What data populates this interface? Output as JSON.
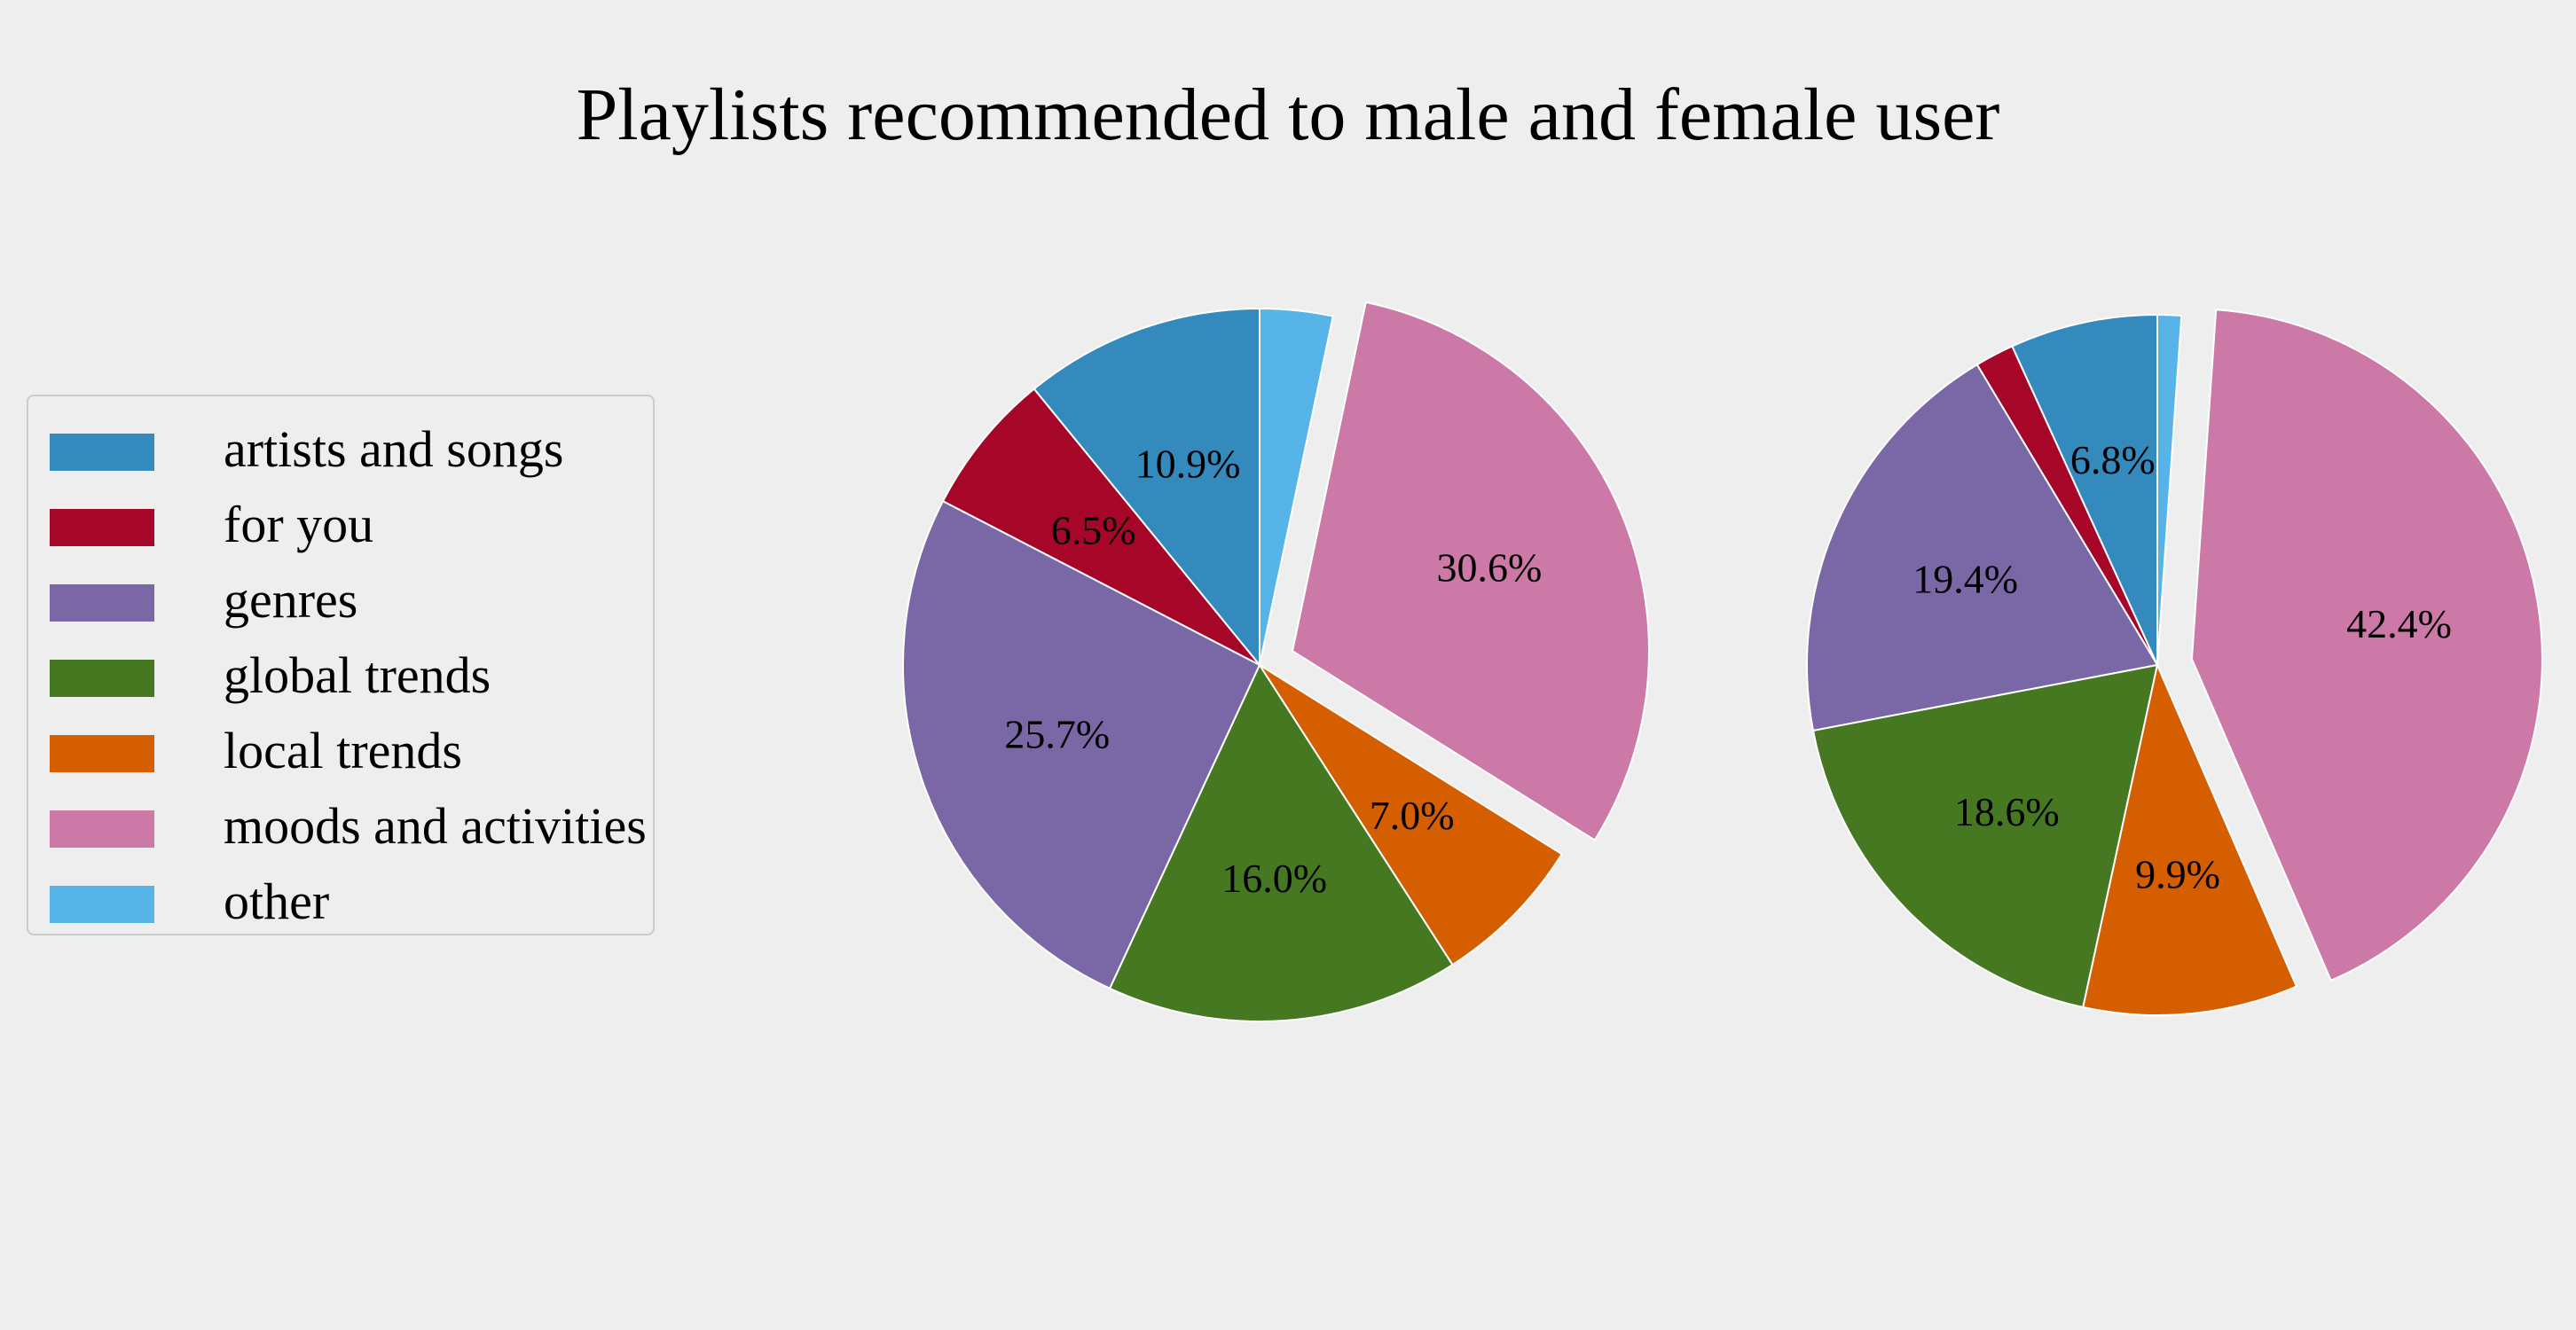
{
  "chart_data": {
    "type": "pie",
    "title": "Playlists recommended to male and female user",
    "legend": {
      "position": "center-left",
      "entries": [
        {
          "label": "artists and songs",
          "color": "#348ABD"
        },
        {
          "label": "for you",
          "color": "#A60628"
        },
        {
          "label": "genres",
          "color": "#7A68A6"
        },
        {
          "label": "global trends",
          "color": "#467821"
        },
        {
          "label": "local trends",
          "color": "#D55E00"
        },
        {
          "label": "moods and activities",
          "color": "#CC79A7"
        },
        {
          "label": "other",
          "color": "#56B4E9"
        }
      ]
    },
    "pies": [
      {
        "slices": [
          {
            "category": "artists and songs",
            "value": 10.9,
            "label": "10.9%"
          },
          {
            "category": "for you",
            "value": 6.5,
            "label": "6.5%"
          },
          {
            "category": "genres",
            "value": 25.7,
            "label": "25.7%"
          },
          {
            "category": "global trends",
            "value": 16.0,
            "label": "16.0%"
          },
          {
            "category": "local trends",
            "value": 7.0,
            "label": "7.0%"
          },
          {
            "category": "moods and activities",
            "value": 30.6,
            "label": "30.6%",
            "exploded": true
          },
          {
            "category": "other",
            "value": 3.3,
            "label": ""
          }
        ]
      },
      {
        "slices": [
          {
            "category": "artists and songs",
            "value": 6.8,
            "label": "6.8%"
          },
          {
            "category": "for you",
            "value": 1.8,
            "label": ""
          },
          {
            "category": "genres",
            "value": 19.4,
            "label": "19.4%"
          },
          {
            "category": "global trends",
            "value": 18.6,
            "label": "18.6%"
          },
          {
            "category": "local trends",
            "value": 9.9,
            "label": "9.9%"
          },
          {
            "category": "moods and activities",
            "value": 42.4,
            "label": "42.4%",
            "exploded": true
          },
          {
            "category": "other",
            "value": 1.1,
            "label": ""
          }
        ]
      }
    ]
  }
}
